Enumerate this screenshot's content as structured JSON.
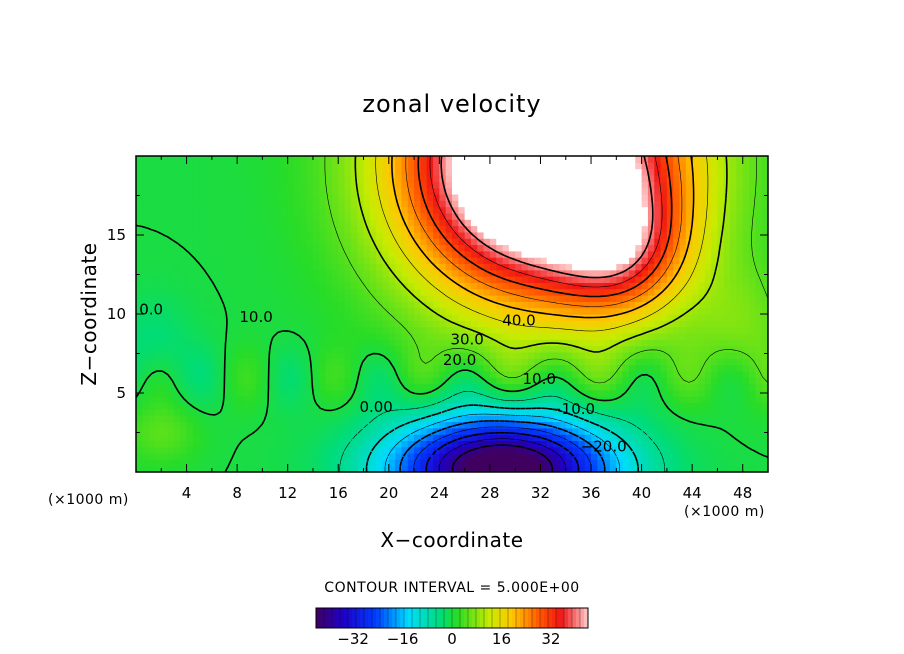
{
  "chart_data": {
    "type": "heatmap",
    "title": "zonal velocity",
    "xlabel": "X−coordinate",
    "ylabel": "Z−coordinate",
    "x_unit_left": "(×1000 m)",
    "x_unit_right": "(×1000 m)",
    "xlim": [
      0,
      50
    ],
    "ylim": [
      0,
      20
    ],
    "x_ticks": [
      4,
      8,
      12,
      16,
      20,
      24,
      28,
      32,
      36,
      40,
      44,
      48
    ],
    "x_tick_labels": [
      "4",
      "8",
      "12",
      "16",
      "20",
      "24",
      "28",
      "32",
      "36",
      "40",
      "44",
      "48"
    ],
    "y_ticks": [
      5,
      10,
      15
    ],
    "y_tick_labels": [
      "5",
      "10",
      "15"
    ],
    "contour_interval_text": "CONTOUR INTERVAL = 5.000E+00",
    "contour_interval": 5.0,
    "colorbar": {
      "min": -44,
      "max": 44,
      "ticks": [
        -32,
        -16,
        0,
        16,
        32
      ],
      "tick_labels": [
        "−32",
        "−16",
        "0",
        "16",
        "32"
      ]
    },
    "contour_labels": [
      {
        "text": "40.0",
        "x": 30.3,
        "z": 9.6
      },
      {
        "text": "30.0",
        "x": 26.2,
        "z": 8.4
      },
      {
        "text": "20.0",
        "x": 25.6,
        "z": 7.1
      },
      {
        "text": "10.0",
        "x": 31.9,
        "z": 5.9
      },
      {
        "text": "10.0",
        "x": 9.5,
        "z": 9.8
      },
      {
        "text": "0.0",
        "x": 1.2,
        "z": 10.3
      },
      {
        "text": "0.00",
        "x": 19.0,
        "z": 4.1
      },
      {
        "text": "−10.0",
        "x": 34.5,
        "z": 4.0
      },
      {
        "text": "−20.0",
        "x": 37.0,
        "z": 1.6
      }
    ],
    "features": {
      "jet_max": {
        "x": 32,
        "z": 16,
        "value_ge": 44
      },
      "reverse_flow_min": {
        "x": 29,
        "z": 0,
        "value_le": -40
      }
    }
  }
}
